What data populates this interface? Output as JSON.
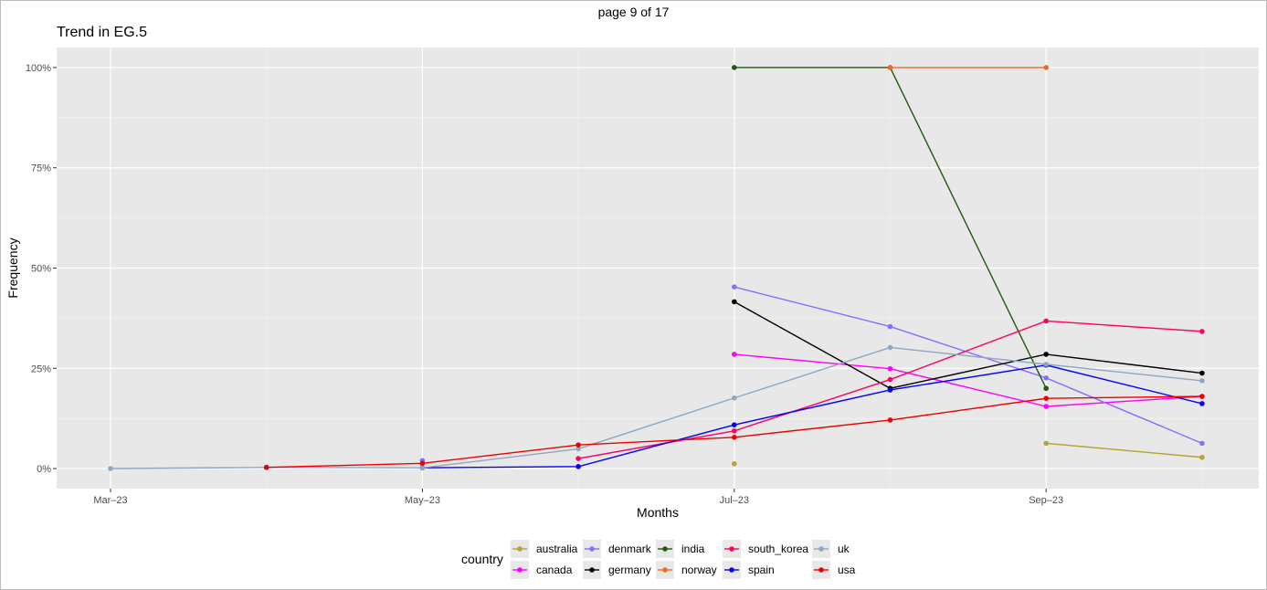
{
  "page": {
    "label": "page 9 of 17"
  },
  "chart_data": {
    "type": "line",
    "title": "Trend in EG.5",
    "xlabel": "Months",
    "ylabel": "Frequency",
    "x_ticks": [
      "Mar–23",
      "May–23",
      "Jul–23",
      "Sep–23"
    ],
    "y_ticks": [
      "0%",
      "25%",
      "50%",
      "75%",
      "100%"
    ],
    "ylim": [
      -0.05,
      1.05
    ],
    "x": [
      "2023-03",
      "2023-04",
      "2023-05",
      "2023-06",
      "2023-07",
      "2023-08",
      "2023-09",
      "2023-10"
    ],
    "grid": true,
    "legend": {
      "title": "country",
      "position": "bottom"
    },
    "series": [
      {
        "name": "australia",
        "color": "#b5a42e",
        "values": [
          null,
          null,
          null,
          null,
          0.012,
          null,
          0.063,
          0.028
        ]
      },
      {
        "name": "canada",
        "color": "#ff00ff",
        "values": [
          null,
          null,
          null,
          null,
          0.285,
          0.249,
          0.155,
          0.18
        ]
      },
      {
        "name": "denmark",
        "color": "#8b6cff",
        "values": [
          null,
          null,
          0.02,
          null,
          0.453,
          0.354,
          0.226,
          0.063
        ]
      },
      {
        "name": "germany",
        "color": "#000000",
        "values": [
          null,
          null,
          null,
          null,
          0.416,
          0.2,
          0.285,
          0.238
        ]
      },
      {
        "name": "india",
        "color": "#1e5c0b",
        "values": [
          null,
          0.003,
          null,
          null,
          1.0,
          1.0,
          0.2,
          null
        ]
      },
      {
        "name": "norway",
        "color": "#f26a1f",
        "values": [
          null,
          null,
          null,
          null,
          null,
          1.0,
          1.0,
          null
        ]
      },
      {
        "name": "south_korea",
        "color": "#ff0066",
        "values": [
          null,
          null,
          null,
          0.025,
          0.094,
          0.222,
          0.368,
          0.342
        ]
      },
      {
        "name": "spain",
        "color": "#0000ff",
        "values": [
          null,
          null,
          0.002,
          0.005,
          0.109,
          0.196,
          0.258,
          0.162
        ]
      },
      {
        "name": "uk",
        "color": "#8fa6c2",
        "values": [
          0.0,
          0.003,
          0.002,
          0.049,
          0.176,
          0.302,
          0.26,
          0.219
        ]
      },
      {
        "name": "usa",
        "color": "#ee0000",
        "values": [
          null,
          0.003,
          0.013,
          0.059,
          0.078,
          0.121,
          0.175,
          0.18
        ]
      }
    ]
  }
}
